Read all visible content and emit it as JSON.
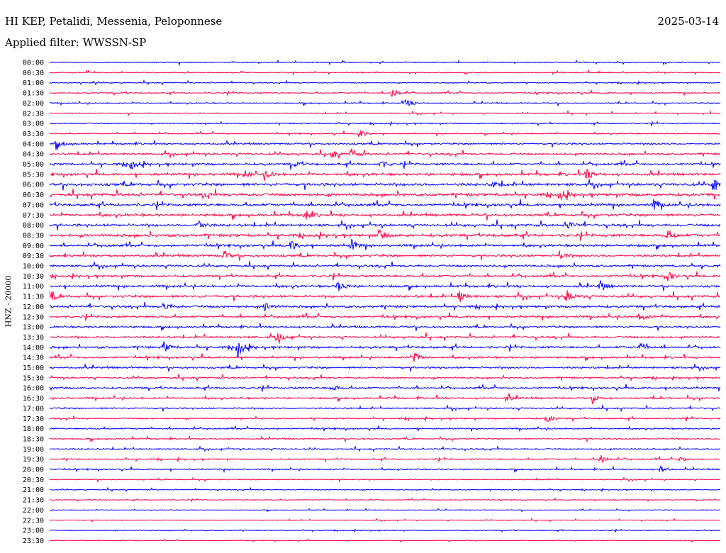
{
  "header": {
    "station": "HI KEP, Petalidi, Messenia, Peloponnese",
    "date": "2025-03-14",
    "filter": "Applied filter: WWSSN-SP"
  },
  "chart_data": {
    "type": "line",
    "ylabel": "HNZ - 20000",
    "colors": [
      "#0000ff",
      "#ff0040"
    ],
    "rows": [
      "00:00",
      "00:30",
      "01:00",
      "01:30",
      "02:00",
      "02:30",
      "03:00",
      "03:30",
      "04:00",
      "04:30",
      "05:00",
      "05:30",
      "06:00",
      "06:30",
      "07:00",
      "07:30",
      "08:00",
      "08:30",
      "09:00",
      "09:30",
      "10:00",
      "10:30",
      "11:00",
      "11:30",
      "12:00",
      "12:30",
      "13:00",
      "13:30",
      "14:00",
      "14:30",
      "15:00",
      "15:30",
      "16:00",
      "16:30",
      "17:00",
      "17:30",
      "18:00",
      "18:30",
      "19:00",
      "19:30",
      "20:00",
      "20:30",
      "21:00",
      "21:30",
      "22:00",
      "22:30",
      "23:00",
      "23:30"
    ],
    "noise_level": [
      0.8,
      0.8,
      0.8,
      0.9,
      0.9,
      0.8,
      0.9,
      0.9,
      1.4,
      1.6,
      1.8,
      2.0,
      2.2,
      2.2,
      2.0,
      2.0,
      2.0,
      2.2,
      1.8,
      1.8,
      1.7,
      1.7,
      1.8,
      1.9,
      1.8,
      1.6,
      1.5,
      1.6,
      1.7,
      1.5,
      1.5,
      1.3,
      1.4,
      1.4,
      1.2,
      1.1,
      1.1,
      1.0,
      1.0,
      1.0,
      1.0,
      0.8,
      0.7,
      0.6,
      0.6,
      0.6,
      0.6,
      0.5
    ],
    "events": [
      {
        "row": 3,
        "t": 0.51,
        "amp": 9
      },
      {
        "row": 4,
        "t": 0.53,
        "amp": 8
      },
      {
        "row": 7,
        "t": 0.46,
        "amp": 8
      },
      {
        "row": 8,
        "t": 0.01,
        "amp": 9
      },
      {
        "row": 9,
        "t": 0.42,
        "amp": 7
      },
      {
        "row": 9,
        "t": 0.45,
        "amp": 8
      },
      {
        "row": 10,
        "t": 0.12,
        "amp": 9
      },
      {
        "row": 10,
        "t": 0.49,
        "amp": 8
      },
      {
        "row": 10,
        "t": 0.36,
        "amp": 6
      },
      {
        "row": 11,
        "t": 0.32,
        "amp": 7
      },
      {
        "row": 11,
        "t": 0.29,
        "amp": 6
      },
      {
        "row": 11,
        "t": 0.8,
        "amp": 8
      },
      {
        "row": 12,
        "t": 0.99,
        "amp": 12
      },
      {
        "row": 12,
        "t": 0.66,
        "amp": 6
      },
      {
        "row": 13,
        "t": 0.76,
        "amp": 9
      },
      {
        "row": 13,
        "t": 0.23,
        "amp": 6
      },
      {
        "row": 14,
        "t": 0.9,
        "amp": 9
      },
      {
        "row": 15,
        "t": 0.38,
        "amp": 9
      },
      {
        "row": 16,
        "t": 0.22,
        "amp": 10
      },
      {
        "row": 16,
        "t": 0.77,
        "amp": 9
      },
      {
        "row": 17,
        "t": 0.49,
        "amp": 9
      },
      {
        "row": 17,
        "t": 0.92,
        "amp": 8
      },
      {
        "row": 18,
        "t": 0.45,
        "amp": 9
      },
      {
        "row": 18,
        "t": 0.36,
        "amp": 8
      },
      {
        "row": 19,
        "t": 0.26,
        "amp": 6
      },
      {
        "row": 19,
        "t": 0.76,
        "amp": 7
      },
      {
        "row": 21,
        "t": 0.92,
        "amp": 8
      },
      {
        "row": 22,
        "t": 0.43,
        "amp": 8
      },
      {
        "row": 22,
        "t": 0.82,
        "amp": 9
      },
      {
        "row": 23,
        "t": 0.61,
        "amp": 10
      },
      {
        "row": 23,
        "t": 0.77,
        "amp": 11
      },
      {
        "row": 23,
        "t": 0.0,
        "amp": 7
      },
      {
        "row": 24,
        "t": 0.17,
        "amp": 8
      },
      {
        "row": 24,
        "t": 0.32,
        "amp": 8
      },
      {
        "row": 25,
        "t": 0.88,
        "amp": 7
      },
      {
        "row": 27,
        "t": 0.34,
        "amp": 7
      },
      {
        "row": 28,
        "t": 0.28,
        "amp": 14
      },
      {
        "row": 28,
        "t": 0.17,
        "amp": 7
      },
      {
        "row": 28,
        "t": 0.88,
        "amp": 7
      },
      {
        "row": 29,
        "t": 0.54,
        "amp": 12
      },
      {
        "row": 32,
        "t": 0.42,
        "amp": 6
      },
      {
        "row": 33,
        "t": 0.68,
        "amp": 6
      },
      {
        "row": 33,
        "t": 0.81,
        "amp": 7
      },
      {
        "row": 35,
        "t": 0.74,
        "amp": 7
      },
      {
        "row": 39,
        "t": 0.82,
        "amp": 8
      },
      {
        "row": 39,
        "t": 0.94,
        "amp": 4
      },
      {
        "row": 40,
        "t": 0.91,
        "amp": 5
      }
    ]
  }
}
